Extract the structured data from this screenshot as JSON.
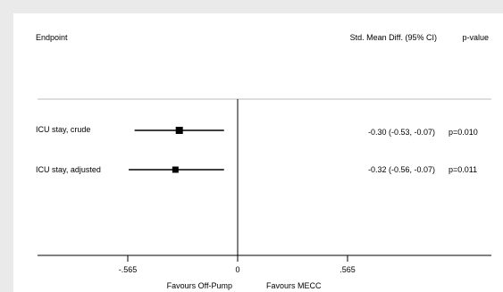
{
  "header": {
    "endpoint": "Endpoint",
    "effect": "Std. Mean Diff. (95% CI)",
    "pvalue": "p-value"
  },
  "chart_data": {
    "type": "forest",
    "xlim": [
      -1.0,
      1.2
    ],
    "ticks": [
      {
        "value": -0.565,
        "label": "-.565"
      },
      {
        "value": 0,
        "label": "0"
      },
      {
        "value": 0.565,
        "label": ".565"
      }
    ],
    "reference_line": 0,
    "rows": [
      {
        "label": "ICU stay, crude",
        "estimate": -0.3,
        "lower": -0.53,
        "upper": -0.07,
        "ci_text": "-0.30 (-0.53, -0.07)",
        "p_text": "p=0.010"
      },
      {
        "label": "ICU stay, adjusted",
        "estimate": -0.32,
        "lower": -0.56,
        "upper": -0.07,
        "ci_text": "-0.32 (-0.56, -0.07)",
        "p_text": "p=0.011"
      }
    ],
    "favours_left": "Favours Off-Pump",
    "favours_right": "Favours MECC",
    "colors": {
      "line": "#000000",
      "separator": "#bbbbbb",
      "background": "#ffffff"
    }
  }
}
